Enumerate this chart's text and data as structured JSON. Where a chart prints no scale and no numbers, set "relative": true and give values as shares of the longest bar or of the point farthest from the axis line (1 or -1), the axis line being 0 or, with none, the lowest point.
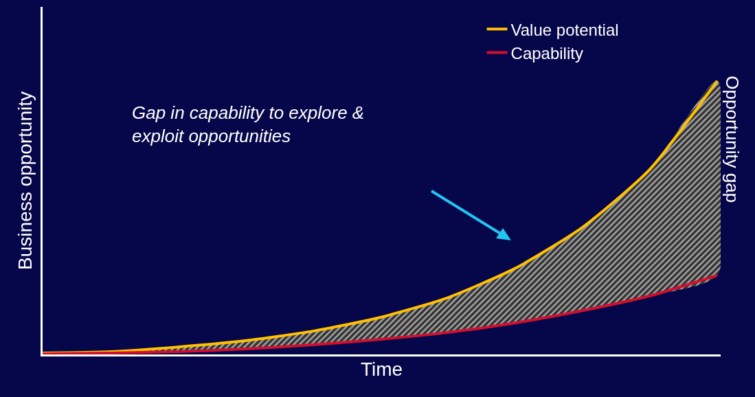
{
  "chart_data": {
    "type": "line",
    "relative": true,
    "xlabel": "Time",
    "ylabel": "Business opportunity",
    "y2label": "Opportunity gap",
    "categories": [
      null,
      null,
      null,
      null,
      null,
      null,
      null,
      null,
      null,
      null,
      null
    ],
    "series": [
      {
        "name": "Value potential",
        "color": "#ffc000",
        "values": [
          0.005,
          0.01,
          0.027,
          0.05,
          0.085,
          0.135,
          0.207,
          0.314,
          0.464,
          0.676,
          1
        ],
        "lower": [
          0.002,
          0.005,
          0.01,
          0.02,
          0.035,
          0.055,
          0.08,
          0.115,
          0.16,
          0.214,
          0.289
        ],
        "upper": [
          0.005,
          0.01,
          0.027,
          0.05,
          0.085,
          0.135,
          0.207,
          0.314,
          0.464,
          0.676,
          1
        ]
      },
      {
        "name": "Capability",
        "color": "#d0102e",
        "values": [
          0.002,
          0.005,
          0.01,
          0.02,
          0.035,
          0.055,
          0.08,
          0.115,
          0.16,
          0.214,
          0.289
        ]
      }
    ],
    "annotations": [
      "Gap in capability to explore &\nexploit opportunities"
    ],
    "legend": "top right",
    "grid": false,
    "marker": "none",
    "line_style": "solid"
  }
}
